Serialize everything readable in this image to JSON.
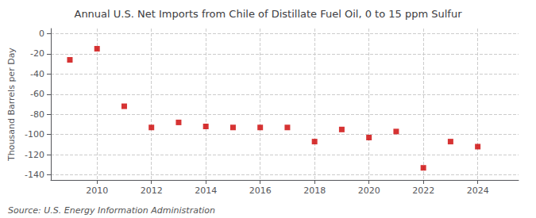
{
  "chart_data": {
    "type": "scatter",
    "title": "Annual U.S. Net Imports from Chile of Distillate Fuel Oil, 0 to 15 ppm Sulfur",
    "ylabel": "Thousand Barrels per Day",
    "annotations": [
      "Source: U.S. Energy Information Administration"
    ],
    "x": [
      2009,
      2010,
      2011,
      2012,
      2013,
      2014,
      2015,
      2016,
      2017,
      2018,
      2019,
      2020,
      2021,
      2022,
      2023,
      2024
    ],
    "values": [
      -26,
      -15,
      -72,
      -93,
      -88,
      -92,
      -93,
      -93,
      -93,
      -107,
      -95,
      -103,
      -97,
      -133,
      -107,
      -112
    ],
    "color": "#cc0000",
    "marker": "square",
    "xlim": [
      2008.3,
      2025.5
    ],
    "ylim": [
      -145,
      5
    ],
    "xticks": [
      2010,
      2012,
      2014,
      2016,
      2018,
      2020,
      2022,
      2024
    ],
    "yticks": [
      0,
      -20,
      -40,
      -60,
      -80,
      -100,
      -120,
      -140
    ],
    "grid": true
  }
}
